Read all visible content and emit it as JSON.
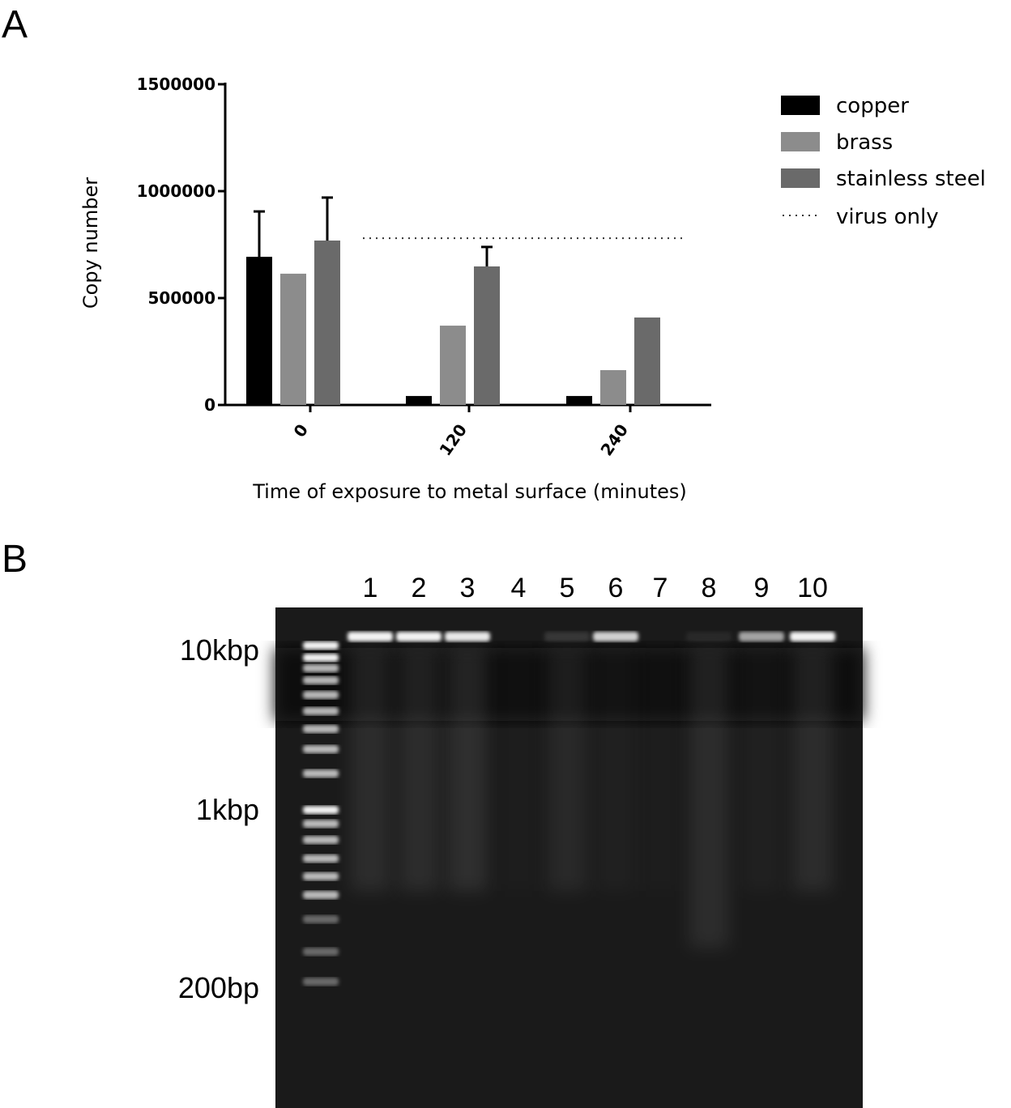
{
  "panels": {
    "a": "A",
    "b": "B"
  },
  "chart_data": {
    "type": "bar",
    "categories": [
      "0",
      "120",
      "240"
    ],
    "xlabel": "Time of exposure to metal surface (minutes)",
    "ylabel": "Copy number",
    "ylim": [
      0,
      1500000
    ],
    "yticks": [
      "0",
      "500000",
      "1000000",
      "1500000"
    ],
    "ytick_values": [
      0,
      500000,
      1000000,
      1500000
    ],
    "legend_position": "top-right",
    "series": [
      {
        "name": "copper",
        "color": "#000000",
        "values": [
          693000,
          42000,
          42000
        ],
        "error_upper": [
          905000,
          null,
          null
        ]
      },
      {
        "name": "brass",
        "color": "#8c8c8c",
        "values": [
          614000,
          371000,
          163000
        ],
        "error_upper": [
          null,
          null,
          null
        ]
      },
      {
        "name": "stainless steel",
        "color": "#6a6a6a",
        "values": [
          769000,
          648000,
          409000
        ],
        "error_upper": [
          970000,
          739000,
          null
        ]
      }
    ],
    "reference_line": {
      "name": "virus only",
      "value": 780000,
      "style": "dotted"
    }
  },
  "gel": {
    "lane_labels": [
      "1",
      "2",
      "3",
      "4",
      "5",
      "6",
      "7",
      "8",
      "9",
      "10"
    ],
    "marker_labels": [
      "10kbp",
      "1kbp",
      "200bp"
    ],
    "top_band_intensity": [
      0.95,
      0.95,
      0.9,
      0,
      0.12,
      0.8,
      0,
      0.06,
      0.6,
      0.95
    ],
    "smear_intensity": [
      0.3,
      0.3,
      0.35,
      0.05,
      0.25,
      0.1,
      0.05,
      0.3,
      0.1,
      0.3
    ]
  }
}
